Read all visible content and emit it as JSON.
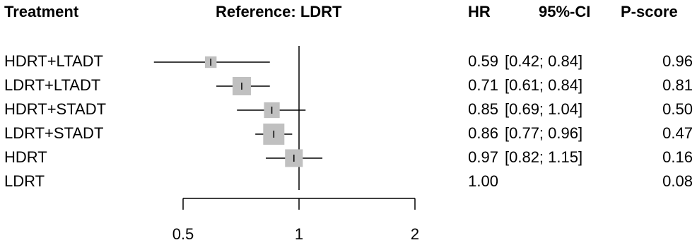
{
  "header": {
    "treatment": "Treatment",
    "reference": "Reference: LDRT",
    "hr": "HR",
    "ci": "95%-CI",
    "pscore": "P-score"
  },
  "chart_data": {
    "type": "forest",
    "x_scale": "log",
    "xlim": [
      0.5,
      2
    ],
    "x_ticks": [
      0.5,
      1,
      2
    ],
    "x_tick_labels": [
      "0.5",
      "1",
      "2"
    ],
    "reference_line": 1,
    "title": "Reference: LDRT",
    "rows": [
      {
        "treatment": "HDRT+LTADT",
        "hr": 0.59,
        "ci_low": 0.42,
        "ci_high": 0.84,
        "hr_text": "0.59",
        "ci_text": "[0.42; 0.84]",
        "pscore": "0.96",
        "weight": 0.3
      },
      {
        "treatment": "LDRT+LTADT",
        "hr": 0.71,
        "ci_low": 0.61,
        "ci_high": 0.84,
        "hr_text": "0.71",
        "ci_text": "[0.61; 0.84]",
        "pscore": "0.81",
        "weight": 0.75
      },
      {
        "treatment": "HDRT+STADT",
        "hr": 0.85,
        "ci_low": 0.69,
        "ci_high": 1.04,
        "hr_text": "0.85",
        "ci_text": "[0.69; 1.04]",
        "pscore": "0.50",
        "weight": 0.55
      },
      {
        "treatment": "LDRT+STADT",
        "hr": 0.86,
        "ci_low": 0.77,
        "ci_high": 0.96,
        "hr_text": "0.86",
        "ci_text": "[0.77; 0.96]",
        "pscore": "0.47",
        "weight": 1.0
      },
      {
        "treatment": "HDRT",
        "hr": 0.97,
        "ci_low": 0.82,
        "ci_high": 1.15,
        "hr_text": "0.97",
        "ci_text": "[0.82; 1.15]",
        "pscore": "0.16",
        "weight": 0.7
      },
      {
        "treatment": "LDRT",
        "hr": 1.0,
        "ci_low": null,
        "ci_high": null,
        "hr_text": "1.00",
        "ci_text": "",
        "pscore": "0.08",
        "weight": 0
      }
    ]
  }
}
